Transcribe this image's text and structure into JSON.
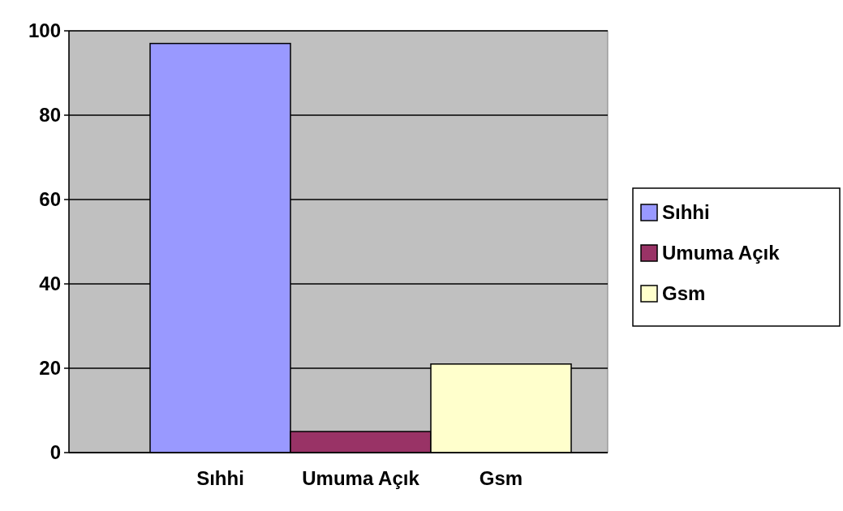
{
  "chart_data": {
    "type": "bar",
    "categories": [
      "Sıhhi",
      "Umuma Açık",
      "Gsm"
    ],
    "series": [
      {
        "name": "Sıhhi",
        "color": "#9999ff",
        "values": [
          97,
          null,
          null
        ]
      },
      {
        "name": "Umuma Açık",
        "color": "#993366",
        "values": [
          null,
          5,
          null
        ]
      },
      {
        "name": "Gsm",
        "color": "#ffffcc",
        "values": [
          null,
          null,
          21
        ]
      }
    ],
    "ylim": [
      0,
      100
    ],
    "yticks": [
      0,
      20,
      40,
      60,
      80,
      100
    ],
    "grid": "y",
    "legend": "right"
  }
}
